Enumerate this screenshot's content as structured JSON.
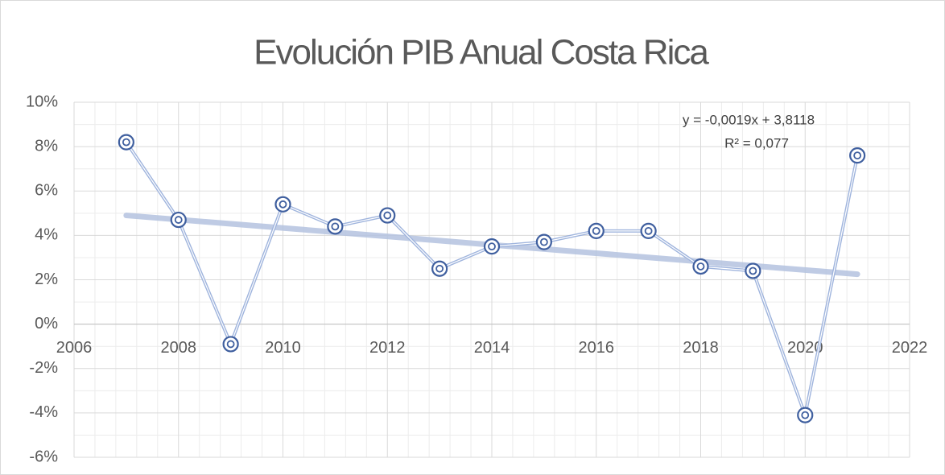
{
  "chart_data": {
    "type": "scatter",
    "title": "Evolución  PIB Anual Costa Rica",
    "x": [
      2007,
      2008,
      2009,
      2010,
      2011,
      2012,
      2013,
      2014,
      2015,
      2016,
      2017,
      2018,
      2019,
      2020,
      2021
    ],
    "values": [
      8.2,
      4.7,
      -0.9,
      5.4,
      4.4,
      4.9,
      2.5,
      3.5,
      3.7,
      4.2,
      4.2,
      2.6,
      2.4,
      -4.1,
      7.6
    ],
    "color": "#3f5f9f",
    "line_color": "#9fb4dd",
    "trendline": {
      "x": [
        2007,
        2021
      ],
      "values": [
        4.9,
        2.25
      ],
      "color": "#b4c3e0",
      "equation": "y = -0,0019x + 3,8118",
      "r2": "R² = 0,077"
    },
    "xlim": [
      2006,
      2022
    ],
    "xticks": [
      2006,
      2008,
      2010,
      2012,
      2014,
      2016,
      2018,
      2020,
      2022
    ],
    "ylim": [
      -6,
      10
    ],
    "yticks": [
      {
        "value": -6,
        "label": "-6%"
      },
      {
        "value": -4,
        "label": "-4%"
      },
      {
        "value": -2,
        "label": "-2%"
      },
      {
        "value": 0,
        "label": "0%"
      },
      {
        "value": 2,
        "label": "2%"
      },
      {
        "value": 4,
        "label": "4%"
      },
      {
        "value": 6,
        "label": "6%"
      },
      {
        "value": 8,
        "label": "8%"
      },
      {
        "value": 10,
        "label": "10%"
      }
    ],
    "grid": true
  }
}
